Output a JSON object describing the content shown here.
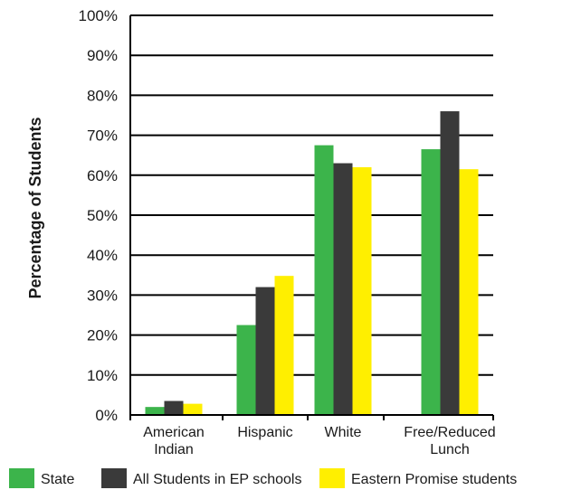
{
  "chart_data": {
    "type": "bar",
    "title": "",
    "xlabel": "",
    "ylabel": "Percentage of Students",
    "ylim": [
      0,
      100
    ],
    "yticks": [
      "0%",
      "10%",
      "20%",
      "30%",
      "40%",
      "50%",
      "60%",
      "70%",
      "80%",
      "90%",
      "100%"
    ],
    "grid": true,
    "legend_position": "bottom",
    "categories": [
      [
        "American",
        "Indian"
      ],
      [
        "Hispanic"
      ],
      [
        "White"
      ],
      [
        "Free/Reduced",
        "Lunch"
      ]
    ],
    "series": [
      {
        "name": "State",
        "color": "#3cb44b",
        "values": [
          2,
          22.5,
          67.5,
          66.5
        ]
      },
      {
        "name": "All Students in EP schools",
        "color": "#3a3a3a",
        "values": [
          3.5,
          32,
          63,
          76
        ]
      },
      {
        "name": "Eastern Promise students",
        "color": "#ffef00",
        "values": [
          2.8,
          34.8,
          62,
          61.5
        ]
      }
    ]
  }
}
